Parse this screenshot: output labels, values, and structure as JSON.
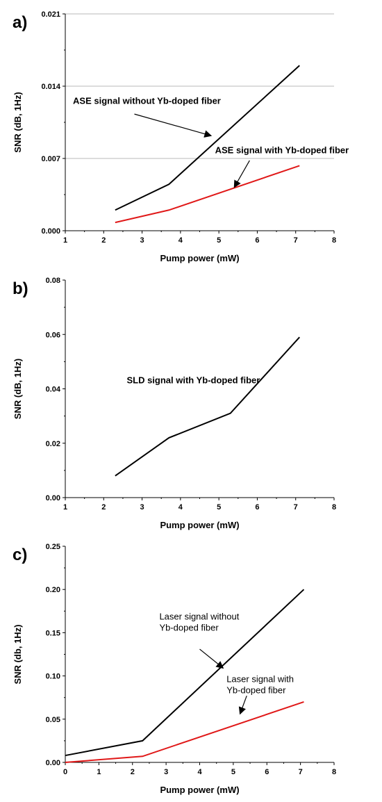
{
  "chart_data": [
    {
      "type": "line",
      "panel_label": "a)",
      "xlabel": "Pump power (mW)",
      "ylabel": "SNR (dB, 1Hz)",
      "xlim": [
        1,
        8
      ],
      "ylim": [
        0,
        0.021
      ],
      "xticks": [
        1,
        2,
        3,
        4,
        5,
        6,
        7,
        8
      ],
      "yticks": [
        0.0,
        0.007,
        0.014,
        0.021
      ],
      "ytick_labels": [
        "0.000",
        "0.007",
        "0.014",
        "0.021"
      ],
      "grid": "horizontal",
      "series": [
        {
          "color": "#000000",
          "x": [
            2.3,
            3.7,
            7.1
          ],
          "y": [
            0.002,
            0.0045,
            0.016
          ]
        },
        {
          "color": "#e01818",
          "x": [
            2.3,
            3.7,
            7.1
          ],
          "y": [
            0.0008,
            0.002,
            0.0063
          ]
        }
      ],
      "annotations": [
        {
          "text_lines": [
            "ASE signal without Yb-doped fiber"
          ],
          "bold": true,
          "text_at": [
            1.2,
            0.0123
          ],
          "arrow_from": [
            2.8,
            0.0113
          ],
          "arrow_to": [
            4.8,
            0.0092
          ]
        },
        {
          "text_lines": [
            "ASE signal with Yb-doped fiber"
          ],
          "bold": true,
          "text_at": [
            4.9,
            0.0075
          ],
          "arrow_from": [
            5.8,
            0.0068
          ],
          "arrow_to": [
            5.4,
            0.0042
          ]
        }
      ]
    },
    {
      "type": "line",
      "panel_label": "b)",
      "xlabel": "Pump power (mW)",
      "ylabel": "SNR (dB, 1Hz)",
      "xlim": [
        1,
        8
      ],
      "ylim": [
        0,
        0.08
      ],
      "xticks": [
        1,
        2,
        3,
        4,
        5,
        6,
        7,
        8
      ],
      "yticks": [
        0.0,
        0.02,
        0.04,
        0.06,
        0.08
      ],
      "ytick_labels": [
        "0.00",
        "0.02",
        "0.04",
        "0.06",
        "0.08"
      ],
      "grid": "none",
      "series": [
        {
          "color": "#000000",
          "x": [
            2.3,
            3.7,
            5.3,
            7.1
          ],
          "y": [
            0.008,
            0.022,
            0.031,
            0.059
          ]
        }
      ],
      "annotations": [
        {
          "text_lines": [
            "SLD signal with Yb-doped fiber"
          ],
          "bold": true,
          "text_at": [
            2.6,
            0.042
          ]
        }
      ]
    },
    {
      "type": "line",
      "panel_label": "c)",
      "xlabel": "Pump power (mW)",
      "ylabel": "SNR (db, 1Hz)",
      "xlim": [
        0,
        8
      ],
      "ylim": [
        0,
        0.25
      ],
      "xticks": [
        0,
        1,
        2,
        3,
        4,
        5,
        6,
        7,
        8
      ],
      "yticks": [
        0.0,
        0.05,
        0.1,
        0.15,
        0.2,
        0.25
      ],
      "ytick_labels": [
        "0.00",
        "0.05",
        "0.10",
        "0.15",
        "0.20",
        "0.25"
      ],
      "grid": "none",
      "series": [
        {
          "color": "#000000",
          "x": [
            0,
            2.3,
            7.1
          ],
          "y": [
            0.008,
            0.025,
            0.2
          ]
        },
        {
          "color": "#e01818",
          "x": [
            0,
            2.3,
            7.1
          ],
          "y": [
            0.0,
            0.007,
            0.07
          ]
        }
      ],
      "annotations": [
        {
          "text_lines": [
            "Laser signal without",
            "Yb-doped fiber"
          ],
          "bold": false,
          "text_at": [
            2.8,
            0.165
          ],
          "arrow_from": [
            4.0,
            0.131
          ],
          "arrow_to": [
            4.7,
            0.109
          ]
        },
        {
          "text_lines": [
            "Laser signal with",
            "Yb-doped fiber"
          ],
          "bold": false,
          "text_at": [
            4.8,
            0.093
          ],
          "arrow_from": [
            5.4,
            0.077
          ],
          "arrow_to": [
            5.2,
            0.056
          ]
        }
      ]
    }
  ]
}
